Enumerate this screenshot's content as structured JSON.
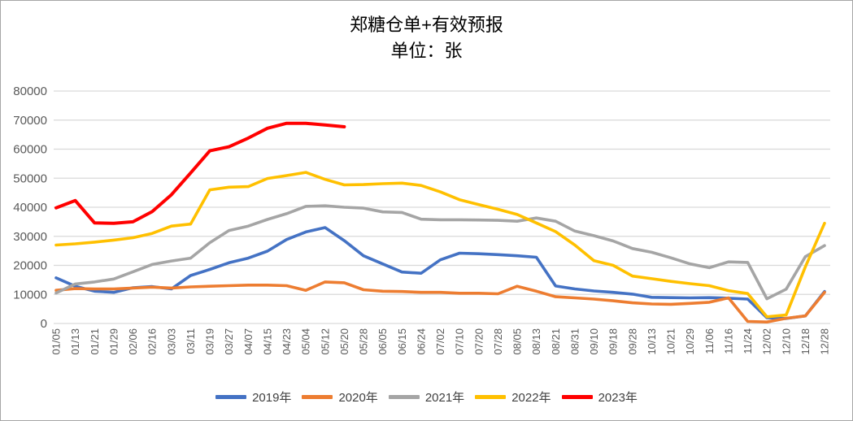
{
  "header": {
    "title": "郑糖仓单+有效预报",
    "subtitle": "单位：张"
  },
  "colors": {
    "grid": "#d9d9d9",
    "axis_text": "#595959",
    "title_text": "#000000",
    "legend_text": "#404040",
    "series_2019": "#4472C4",
    "series_2020": "#ED7D31",
    "series_2021": "#A5A5A5",
    "series_2022": "#FFC000",
    "series_2023": "#FF0000"
  },
  "chart_data": {
    "type": "line",
    "title": "郑糖仓单+有效预报",
    "subtitle": "单位：张",
    "xlabel": "",
    "ylabel": "",
    "ylim": [
      0,
      80000
    ],
    "yticks": [
      0,
      10000,
      20000,
      30000,
      40000,
      50000,
      60000,
      70000,
      80000
    ],
    "grid": true,
    "legend_position": "bottom",
    "categories": [
      "01/05",
      "01/13",
      "01/21",
      "01/29",
      "02/06",
      "02/16",
      "03/03",
      "03/11",
      "03/19",
      "03/27",
      "04/07",
      "04/15",
      "04/23",
      "05/04",
      "05/12",
      "05/20",
      "05/28",
      "06/05",
      "06/15",
      "06/24",
      "07/02",
      "07/10",
      "07/20",
      "07/28",
      "08/05",
      "08/13",
      "08/21",
      "08/31",
      "09/10",
      "09/18",
      "09/28",
      "10/13",
      "10/21",
      "10/29",
      "11/06",
      "11/16",
      "11/24",
      "12/02",
      "12/10",
      "12/18",
      "12/28"
    ],
    "series": [
      {
        "name": "2019年",
        "color": "#4472C4",
        "values": [
          15700,
          12800,
          11100,
          10700,
          12300,
          12700,
          11900,
          16500,
          18600,
          20900,
          22500,
          24900,
          28900,
          31500,
          33000,
          28500,
          23300,
          20500,
          17700,
          17300,
          21900,
          24200,
          24000,
          23700,
          23300,
          22800,
          12900,
          11900,
          11200,
          10700,
          10100,
          9000,
          8900,
          8800,
          8900,
          8700,
          8400,
          2000,
          1700,
          2600,
          11000
        ]
      },
      {
        "name": "2020年",
        "color": "#ED7D31",
        "values": [
          11400,
          12000,
          11900,
          11900,
          12200,
          12500,
          12200,
          12600,
          12800,
          13000,
          13200,
          13200,
          13000,
          11400,
          14300,
          14000,
          11600,
          11100,
          11000,
          10700,
          10700,
          10400,
          10400,
          10200,
          12800,
          11100,
          9200,
          8800,
          8400,
          7800,
          7100,
          6700,
          6600,
          6900,
          7300,
          8800,
          700,
          500,
          1800,
          2600,
          10700
        ]
      },
      {
        "name": "2021年",
        "color": "#A5A5A5",
        "values": [
          10500,
          13600,
          14300,
          15300,
          17800,
          20300,
          21500,
          22500,
          27800,
          32000,
          33500,
          35800,
          37800,
          40300,
          40500,
          40000,
          39700,
          38400,
          38200,
          35900,
          35700,
          35700,
          35600,
          35500,
          35200,
          36300,
          35200,
          31800,
          30200,
          28400,
          25800,
          24500,
          22600,
          20500,
          19200,
          21200,
          21000,
          8500,
          11800,
          23000,
          26800
        ]
      },
      {
        "name": "2022年",
        "color": "#FFC000",
        "values": [
          27000,
          27400,
          28000,
          28700,
          29500,
          31000,
          33500,
          34200,
          46000,
          46900,
          47100,
          49900,
          50900,
          52000,
          49600,
          47700,
          47800,
          48100,
          48300,
          47500,
          45300,
          42600,
          40900,
          39300,
          37500,
          34600,
          31600,
          27000,
          21600,
          20000,
          16300,
          15400,
          14500,
          13700,
          13000,
          11300,
          10300,
          2300,
          2900,
          19500,
          34500
        ]
      },
      {
        "name": "2023年",
        "color": "#FF0000",
        "values": [
          39800,
          42300,
          34600,
          34500,
          35000,
          38500,
          44300,
          51800,
          59400,
          60800,
          63800,
          67200,
          68900,
          68900,
          68300,
          67700,
          null,
          null,
          null,
          null,
          null,
          null,
          null,
          null,
          null,
          null,
          null,
          null,
          null,
          null,
          null,
          null,
          null,
          null,
          null,
          null,
          null,
          null,
          null,
          null,
          null
        ]
      }
    ]
  }
}
